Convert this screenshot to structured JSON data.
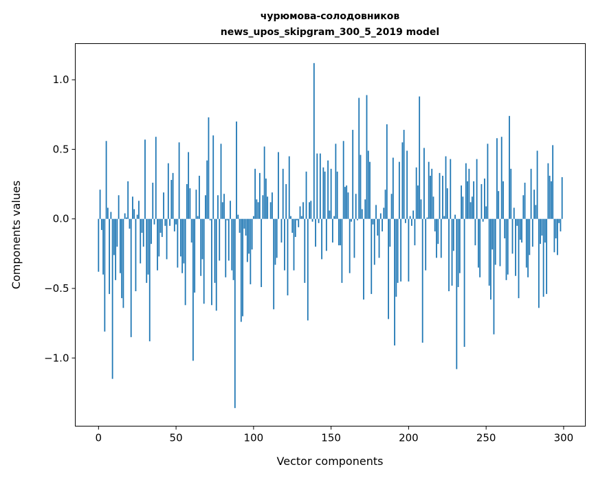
{
  "chart_data": {
    "type": "bar",
    "title": [
      "чурюмова-солодовников",
      "news_upos_skipgram_300_5_2019 model"
    ],
    "xlabel": "Vector components",
    "ylabel": "Components values",
    "xlim": [
      -15,
      314
    ],
    "ylim": [
      -1.49,
      1.26
    ],
    "xticks": [
      0,
      50,
      100,
      150,
      200,
      250,
      300
    ],
    "xtick_labels": [
      "0",
      "50",
      "100",
      "150",
      "200",
      "250",
      "300"
    ],
    "yticks": [
      -1.0,
      -0.5,
      0.0,
      0.5,
      1.0
    ],
    "ytick_labels": [
      "−1.0",
      "−0.5",
      "0.0",
      "0.5",
      "1.0"
    ],
    "grid": false,
    "bar_color": "#1f77b4",
    "values": [
      -0.38,
      0.21,
      -0.08,
      -0.4,
      -0.81,
      0.56,
      0.08,
      -0.54,
      0.05,
      -1.15,
      -0.26,
      -0.44,
      -0.2,
      0.17,
      -0.39,
      -0.57,
      -0.64,
      0.04,
      0.01,
      0.27,
      -0.07,
      -0.85,
      0.16,
      0.07,
      -0.52,
      0.03,
      0.13,
      -0.32,
      -0.1,
      -0.2,
      0.57,
      -0.46,
      -0.4,
      -0.88,
      -0.18,
      0.26,
      -0.04,
      0.59,
      -0.37,
      -0.27,
      -0.1,
      -0.13,
      0.19,
      -0.05,
      -0.29,
      0.4,
      -0.05,
      0.28,
      0.33,
      -0.09,
      -0.04,
      -0.35,
      0.55,
      -0.27,
      -0.39,
      -0.32,
      -0.62,
      0.25,
      0.48,
      0.22,
      -0.17,
      -1.02,
      -0.53,
      0.21,
      0.02,
      0.31,
      -0.41,
      -0.29,
      -0.61,
      0.17,
      0.42,
      0.73,
      -0.01,
      -0.62,
      0.6,
      -0.46,
      -0.66,
      0.17,
      -0.3,
      0.54,
      0.12,
      0.18,
      -0.42,
      -0.01,
      -0.3,
      0.13,
      -0.37,
      -0.44,
      -1.36,
      0.7,
      0.03,
      -0.1,
      -0.74,
      -0.7,
      -0.07,
      -0.12,
      -0.31,
      -0.25,
      -0.47,
      -0.22,
      0.02,
      0.36,
      0.14,
      0.12,
      0.33,
      -0.49,
      0.17,
      0.52,
      0.29,
      0.16,
      0.0,
      0.12,
      0.19,
      -0.65,
      -0.33,
      -0.28,
      0.48,
      0.0,
      -0.17,
      0.36,
      -0.37,
      0.25,
      -0.55,
      0.45,
      0.02,
      -0.1,
      -0.37,
      -0.13,
      -0.01,
      -0.06,
      0.09,
      0.02,
      0.12,
      -0.46,
      0.34,
      -0.73,
      0.12,
      0.13,
      -0.02,
      1.12,
      -0.2,
      0.47,
      -0.03,
      0.47,
      -0.29,
      0.37,
      0.34,
      -0.23,
      0.42,
      0.06,
      0.36,
      -0.17,
      0.02,
      0.54,
      0.34,
      -0.19,
      -0.19,
      -0.46,
      0.56,
      0.23,
      0.24,
      0.19,
      -0.39,
      -0.02,
      0.64,
      -0.28,
      0.18,
      -0.01,
      0.87,
      0.46,
      0.07,
      -0.58,
      0.14,
      0.89,
      0.49,
      0.41,
      -0.54,
      -0.04,
      -0.33,
      0.1,
      -0.12,
      -0.28,
      0.04,
      -0.09,
      0.08,
      0.21,
      0.68,
      -0.72,
      -0.2,
      0.18,
      0.44,
      -0.91,
      -0.56,
      -0.46,
      0.41,
      -0.45,
      0.55,
      0.64,
      -0.03,
      0.49,
      -0.45,
      0.02,
      -0.05,
      0.06,
      -0.19,
      0.37,
      0.24,
      0.88,
      0.14,
      -0.89,
      0.51,
      -0.37,
      0.01,
      0.41,
      0.31,
      0.36,
      0.16,
      -0.09,
      -0.28,
      -0.18,
      0.33,
      -0.28,
      0.31,
      0.02,
      0.45,
      0.22,
      -0.52,
      0.43,
      -0.48,
      -0.23,
      0.03,
      -1.08,
      -0.49,
      -0.39,
      0.24,
      0.16,
      -0.92,
      0.4,
      0.27,
      0.36,
      0.12,
      0.16,
      0.27,
      -0.19,
      0.43,
      -0.35,
      -0.42,
      0.25,
      -0.02,
      0.29,
      0.09,
      0.54,
      -0.48,
      -0.58,
      -0.22,
      -0.83,
      -0.33,
      0.58,
      0.2,
      -0.34,
      0.59,
      0.27,
      -0.14,
      -0.44,
      -0.4,
      0.74,
      0.36,
      -0.25,
      0.08,
      -0.41,
      -0.05,
      -0.57,
      -0.15,
      -0.17,
      0.17,
      0.26,
      -0.35,
      -0.42,
      -0.26,
      0.36,
      -0.2,
      0.21,
      0.1,
      0.49,
      -0.64,
      -0.18,
      -0.12,
      -0.56,
      -0.17,
      -0.54,
      0.4,
      0.31,
      0.27,
      0.53,
      -0.24,
      -0.14,
      -0.26,
      -0.03,
      -0.09,
      0.3
    ]
  }
}
